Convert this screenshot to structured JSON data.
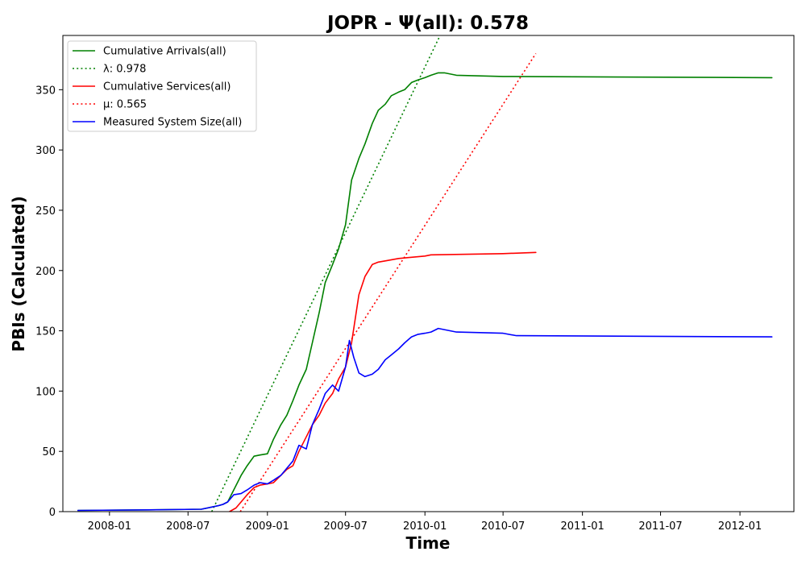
{
  "chart_data": {
    "type": "line",
    "title": "JOPR -  Ψ(all): 0.578",
    "xlabel": "Time",
    "ylabel": "PBIs (Calculated)",
    "xlim": [
      "2007-09-15",
      "2012-05-05"
    ],
    "ylim": [
      0,
      395
    ],
    "x_ticks": [
      "2008-01",
      "2008-07",
      "2009-01",
      "2009-07",
      "2010-01",
      "2010-07",
      "2011-01",
      "2011-07",
      "2012-01"
    ],
    "y_ticks": [
      0,
      50,
      100,
      150,
      200,
      250,
      300,
      350
    ],
    "grid": false,
    "legend_position": "upper-left",
    "series": [
      {
        "name": "Cumulative Arrivals(all)",
        "color": "#008000",
        "style": "solid",
        "x": [
          "2007-10-20",
          "2008-04-01",
          "2008-08-01",
          "2008-09-10",
          "2008-09-20",
          "2008-10-01",
          "2008-10-15",
          "2008-11-01",
          "2008-11-15",
          "2008-12-01",
          "2008-12-15",
          "2009-01-01",
          "2009-01-15",
          "2009-02-01",
          "2009-02-15",
          "2009-03-01",
          "2009-03-15",
          "2009-04-01",
          "2009-04-15",
          "2009-05-01",
          "2009-05-15",
          "2009-06-01",
          "2009-06-15",
          "2009-07-01",
          "2009-07-15",
          "2009-08-01",
          "2009-08-15",
          "2009-09-01",
          "2009-09-15",
          "2009-10-01",
          "2009-10-15",
          "2009-11-01",
          "2009-11-15",
          "2009-12-01",
          "2009-12-15",
          "2010-01-01",
          "2010-01-15",
          "2010-02-01",
          "2010-02-15",
          "2010-03-01",
          "2010-03-15",
          "2010-07-01",
          "2012-03-15"
        ],
        "y": [
          1,
          1.5,
          2,
          5,
          6,
          8,
          18,
          30,
          38,
          46,
          47,
          48,
          60,
          72,
          80,
          92,
          105,
          118,
          140,
          165,
          190,
          205,
          218,
          238,
          275,
          293,
          305,
          322,
          333,
          338,
          345,
          348,
          350,
          356,
          358,
          360,
          362,
          364,
          364,
          363,
          362,
          361,
          360
        ]
      },
      {
        "name": "λ: 0.978",
        "color": "#008000",
        "style": "dotted",
        "x": [
          "2008-08-25",
          "2010-02-05"
        ],
        "y": [
          0,
          395
        ]
      },
      {
        "name": "Cumulative Services(all)",
        "color": "#ff0000",
        "style": "solid",
        "x": [
          "2008-10-05",
          "2008-10-20",
          "2008-11-01",
          "2008-11-15",
          "2008-12-01",
          "2008-12-15",
          "2009-01-01",
          "2009-01-15",
          "2009-02-01",
          "2009-02-15",
          "2009-03-01",
          "2009-03-15",
          "2009-04-01",
          "2009-04-15",
          "2009-05-01",
          "2009-05-15",
          "2009-06-01",
          "2009-06-15",
          "2009-07-01",
          "2009-07-15",
          "2009-08-01",
          "2009-08-15",
          "2009-09-01",
          "2009-09-15",
          "2009-10-01",
          "2009-11-01",
          "2009-12-01",
          "2010-01-01",
          "2010-01-15",
          "2010-07-01",
          "2010-09-15"
        ],
        "y": [
          0,
          3,
          8,
          14,
          20,
          22,
          23,
          24,
          30,
          35,
          38,
          50,
          62,
          72,
          80,
          90,
          98,
          110,
          120,
          140,
          180,
          195,
          205,
          207,
          208,
          210,
          211,
          212,
          213,
          214,
          215
        ]
      },
      {
        "name": "μ: 0.565",
        "color": "#ff0000",
        "style": "dotted",
        "x": [
          "2008-10-30",
          "2010-09-15"
        ],
        "y": [
          0,
          380
        ]
      },
      {
        "name": "Measured System Size(all)",
        "color": "#0000ff",
        "style": "solid",
        "x": [
          "2007-10-20",
          "2008-04-01",
          "2008-08-01",
          "2008-09-10",
          "2008-09-20",
          "2008-10-01",
          "2008-10-15",
          "2008-11-01",
          "2008-11-15",
          "2008-12-01",
          "2008-12-15",
          "2009-01-01",
          "2009-01-15",
          "2009-02-01",
          "2009-02-15",
          "2009-03-01",
          "2009-03-15",
          "2009-04-01",
          "2009-04-15",
          "2009-05-01",
          "2009-05-15",
          "2009-06-01",
          "2009-06-15",
          "2009-07-01",
          "2009-07-10",
          "2009-07-20",
          "2009-08-01",
          "2009-08-15",
          "2009-09-01",
          "2009-09-15",
          "2009-10-01",
          "2009-10-15",
          "2009-11-01",
          "2009-11-15",
          "2009-12-01",
          "2009-12-15",
          "2010-01-01",
          "2010-01-15",
          "2010-02-01",
          "2010-02-15",
          "2010-03-01",
          "2010-03-15",
          "2010-07-01",
          "2010-08-01",
          "2012-03-15"
        ],
        "y": [
          1,
          1.5,
          2,
          5,
          6,
          8,
          14,
          15,
          18,
          22,
          24,
          23,
          26,
          30,
          36,
          42,
          55,
          52,
          72,
          85,
          98,
          105,
          100,
          120,
          142,
          128,
          115,
          112,
          114,
          118,
          126,
          130,
          135,
          140,
          145,
          147,
          148,
          149,
          152,
          151,
          150,
          149,
          148,
          146,
          145
        ]
      }
    ],
    "legend": [
      {
        "label": "Cumulative Arrivals(all)",
        "color": "#008000",
        "style": "solid"
      },
      {
        "label": "λ: 0.978",
        "color": "#008000",
        "style": "dotted"
      },
      {
        "label": "Cumulative Services(all)",
        "color": "#ff0000",
        "style": "solid"
      },
      {
        "label": "μ: 0.565",
        "color": "#ff0000",
        "style": "dotted"
      },
      {
        "label": "Measured System Size(all)",
        "color": "#0000ff",
        "style": "solid"
      }
    ]
  }
}
